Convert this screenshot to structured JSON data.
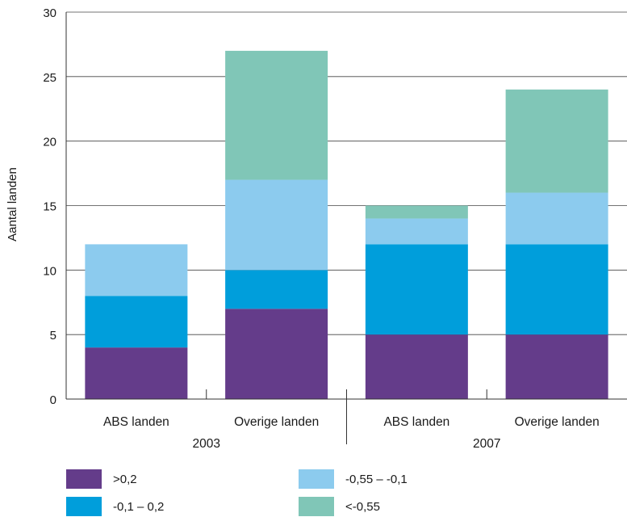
{
  "chart_data": {
    "type": "bar",
    "stacked": true,
    "title": "",
    "ylabel": "Aantal landen",
    "xlabel": "",
    "ylim": [
      0,
      30
    ],
    "yticks": [
      0,
      5,
      10,
      15,
      20,
      25,
      30
    ],
    "grid": true,
    "legend_position": "bottom",
    "categories": [
      "ABS landen",
      "Overige landen",
      "ABS landen",
      "Overige landen"
    ],
    "groups": [
      {
        "label": "2003",
        "categories": [
          0,
          1
        ]
      },
      {
        "label": "2007",
        "categories": [
          2,
          3
        ]
      }
    ],
    "series": [
      {
        "name": ">0,2",
        "color": "#643c8a",
        "values": [
          4,
          7,
          5,
          5
        ]
      },
      {
        "name": "-0,1 – 0,2",
        "color": "#009edb",
        "values": [
          4,
          3,
          7,
          7
        ]
      },
      {
        "name": "-0,55 – -0,1",
        "color": "#8ccbee",
        "values": [
          4,
          7,
          2,
          4
        ]
      },
      {
        "name": "<-0,55",
        "color": "#80c6b7",
        "values": [
          0,
          10,
          1,
          8
        ]
      }
    ]
  }
}
